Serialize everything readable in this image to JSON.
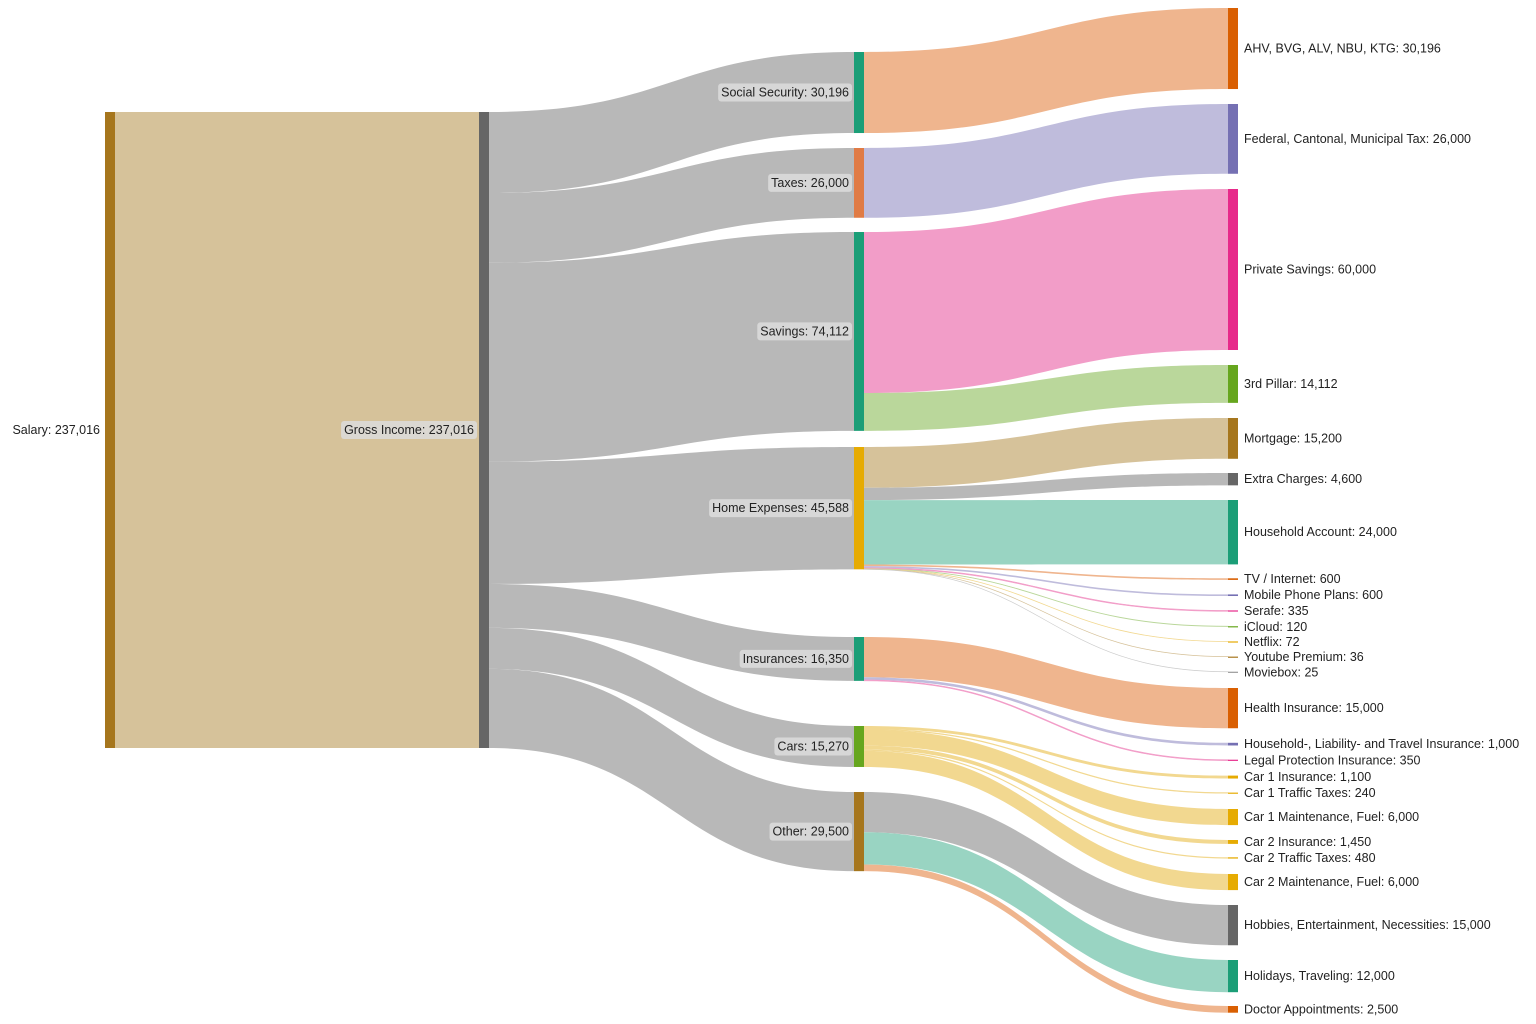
{
  "chart_data": {
    "type": "sankey",
    "value_format": "thousands-comma",
    "colors": {
      "link_default": "#b8b8b8",
      "label_box": "#dcdcdc"
    },
    "nodes": [
      {
        "id": "salary",
        "label": "Salary",
        "value": 237016,
        "color": "#a6761d",
        "column": 0
      },
      {
        "id": "gross",
        "label": "Gross Income",
        "value": 237016,
        "color": "#666666",
        "column": 1
      },
      {
        "id": "social",
        "label": "Social Security",
        "value": 30196,
        "color": "#1b9e77",
        "column": 2
      },
      {
        "id": "taxes",
        "label": "Taxes",
        "value": 26000,
        "color": "#e07b45",
        "column": 2
      },
      {
        "id": "savings",
        "label": "Savings",
        "value": 74112,
        "color": "#1b9e77",
        "column": 2
      },
      {
        "id": "home",
        "label": "Home Expenses",
        "value": 45588,
        "color": "#e6ab02",
        "column": 2
      },
      {
        "id": "insur",
        "label": "Insurances",
        "value": 16350,
        "color": "#1b9e77",
        "column": 2
      },
      {
        "id": "cars",
        "label": "Cars",
        "value": 15270,
        "color": "#66a61e",
        "column": 2
      },
      {
        "id": "other",
        "label": "Other",
        "value": 29500,
        "color": "#a6761d",
        "column": 2
      },
      {
        "id": "ahv",
        "label": "AHV, BVG, ALV, NBU, KTG",
        "value": 30196,
        "color": "#d95f02",
        "column": 3
      },
      {
        "id": "fedtax",
        "label": "Federal, Cantonal, Municipal Tax",
        "value": 26000,
        "color": "#7570b3",
        "column": 3
      },
      {
        "id": "private",
        "label": "Private Savings",
        "value": 60000,
        "color": "#e7298a",
        "column": 3
      },
      {
        "id": "pillar",
        "label": "3rd Pillar",
        "value": 14112,
        "color": "#66a61e",
        "column": 3
      },
      {
        "id": "mortgage",
        "label": "Mortgage",
        "value": 15200,
        "color": "#a6761d",
        "column": 3
      },
      {
        "id": "extra",
        "label": "Extra Charges",
        "value": 4600,
        "color": "#666666",
        "column": 3
      },
      {
        "id": "household",
        "label": "Household Account",
        "value": 24000,
        "color": "#1b9e77",
        "column": 3
      },
      {
        "id": "tv",
        "label": "TV / Internet",
        "value": 600,
        "color": "#d95f02",
        "column": 3
      },
      {
        "id": "mobile",
        "label": "Mobile Phone Plans",
        "value": 600,
        "color": "#7570b3",
        "column": 3
      },
      {
        "id": "serafe",
        "label": "Serafe",
        "value": 335,
        "color": "#e7298a",
        "column": 3
      },
      {
        "id": "icloud",
        "label": "iCloud",
        "value": 120,
        "color": "#66a61e",
        "column": 3
      },
      {
        "id": "netflix",
        "label": "Netflix",
        "value": 72,
        "color": "#e6ab02",
        "column": 3
      },
      {
        "id": "youtube",
        "label": "Youtube Premium",
        "value": 36,
        "color": "#a6761d",
        "column": 3
      },
      {
        "id": "moviebox",
        "label": "Moviebox",
        "value": 25,
        "color": "#999999",
        "column": 3
      },
      {
        "id": "health",
        "label": "Health Insurance",
        "value": 15000,
        "color": "#d95f02",
        "column": 3
      },
      {
        "id": "hhliab",
        "label": "Household-, Liability- and Travel Insurance",
        "value": 1000,
        "color": "#7570b3",
        "column": 3
      },
      {
        "id": "legal",
        "label": "Legal Protection Insurance",
        "value": 350,
        "color": "#e7298a",
        "column": 3
      },
      {
        "id": "c1ins",
        "label": "Car 1 Insurance",
        "value": 1100,
        "color": "#e6ab02",
        "column": 3
      },
      {
        "id": "c1tax",
        "label": "Car 1 Traffic Taxes",
        "value": 240,
        "color": "#e6ab02",
        "column": 3
      },
      {
        "id": "c1maint",
        "label": "Car 1 Maintenance, Fuel",
        "value": 6000,
        "color": "#e6ab02",
        "column": 3
      },
      {
        "id": "c2ins",
        "label": "Car 2 Insurance",
        "value": 1450,
        "color": "#e6ab02",
        "column": 3
      },
      {
        "id": "c2tax",
        "label": "Car 2 Traffic Taxes",
        "value": 480,
        "color": "#e6ab02",
        "column": 3
      },
      {
        "id": "c2maint",
        "label": "Car 2 Maintenance, Fuel",
        "value": 6000,
        "color": "#e6ab02",
        "column": 3
      },
      {
        "id": "hobbies",
        "label": "Hobbies, Entertainment, Necessities",
        "value": 15000,
        "color": "#666666",
        "column": 3
      },
      {
        "id": "holidays",
        "label": "Holidays, Traveling",
        "value": 12000,
        "color": "#1b9e77",
        "column": 3
      },
      {
        "id": "doctor",
        "label": "Doctor Appointments",
        "value": 2500,
        "color": "#d95f02",
        "column": 3
      }
    ],
    "links": [
      {
        "source": "salary",
        "target": "gross",
        "value": 237016,
        "color": "#d6c29a"
      },
      {
        "source": "gross",
        "target": "social",
        "value": 30196,
        "color": "#b8b8b8"
      },
      {
        "source": "gross",
        "target": "taxes",
        "value": 26000,
        "color": "#b8b8b8"
      },
      {
        "source": "gross",
        "target": "savings",
        "value": 74112,
        "color": "#b8b8b8"
      },
      {
        "source": "gross",
        "target": "home",
        "value": 45588,
        "color": "#b8b8b8"
      },
      {
        "source": "gross",
        "target": "insur",
        "value": 16350,
        "color": "#b8b8b8"
      },
      {
        "source": "gross",
        "target": "cars",
        "value": 15270,
        "color": "#b8b8b8"
      },
      {
        "source": "gross",
        "target": "other",
        "value": 29500,
        "color": "#b8b8b8"
      },
      {
        "source": "social",
        "target": "ahv",
        "value": 30196,
        "color": "#efb58e"
      },
      {
        "source": "taxes",
        "target": "fedtax",
        "value": 26000,
        "color": "#bfbcdc"
      },
      {
        "source": "savings",
        "target": "private",
        "value": 60000,
        "color": "#f29dc8"
      },
      {
        "source": "savings",
        "target": "pillar",
        "value": 14112,
        "color": "#bad79b"
      },
      {
        "source": "home",
        "target": "mortgage",
        "value": 15200,
        "color": "#d6c29a"
      },
      {
        "source": "home",
        "target": "extra",
        "value": 4600,
        "color": "#b8b8b8"
      },
      {
        "source": "home",
        "target": "household",
        "value": 24000,
        "color": "#99d4c2"
      },
      {
        "source": "home",
        "target": "tv",
        "value": 600,
        "color": "#efb58e"
      },
      {
        "source": "home",
        "target": "mobile",
        "value": 600,
        "color": "#bfbcdc"
      },
      {
        "source": "home",
        "target": "serafe",
        "value": 335,
        "color": "#f29dc8"
      },
      {
        "source": "home",
        "target": "icloud",
        "value": 120,
        "color": "#bad79b"
      },
      {
        "source": "home",
        "target": "netflix",
        "value": 72,
        "color": "#f2d890"
      },
      {
        "source": "home",
        "target": "youtube",
        "value": 36,
        "color": "#d6c29a"
      },
      {
        "source": "home",
        "target": "moviebox",
        "value": 25,
        "color": "#cccccc"
      },
      {
        "source": "insur",
        "target": "health",
        "value": 15000,
        "color": "#efb58e"
      },
      {
        "source": "insur",
        "target": "hhliab",
        "value": 1000,
        "color": "#bfbcdc"
      },
      {
        "source": "insur",
        "target": "legal",
        "value": 350,
        "color": "#f29dc8"
      },
      {
        "source": "cars",
        "target": "c1ins",
        "value": 1100,
        "color": "#f2d890"
      },
      {
        "source": "cars",
        "target": "c1tax",
        "value": 240,
        "color": "#f2d890"
      },
      {
        "source": "cars",
        "target": "c1maint",
        "value": 6000,
        "color": "#f2d890"
      },
      {
        "source": "cars",
        "target": "c2ins",
        "value": 1450,
        "color": "#f2d890"
      },
      {
        "source": "cars",
        "target": "c2tax",
        "value": 480,
        "color": "#f2d890"
      },
      {
        "source": "cars",
        "target": "c2maint",
        "value": 6000,
        "color": "#f2d890"
      },
      {
        "source": "other",
        "target": "hobbies",
        "value": 15000,
        "color": "#b8b8b8"
      },
      {
        "source": "other",
        "target": "holidays",
        "value": 12000,
        "color": "#99d4c2"
      },
      {
        "source": "other",
        "target": "doctor",
        "value": 2500,
        "color": "#efb58e"
      }
    ]
  }
}
